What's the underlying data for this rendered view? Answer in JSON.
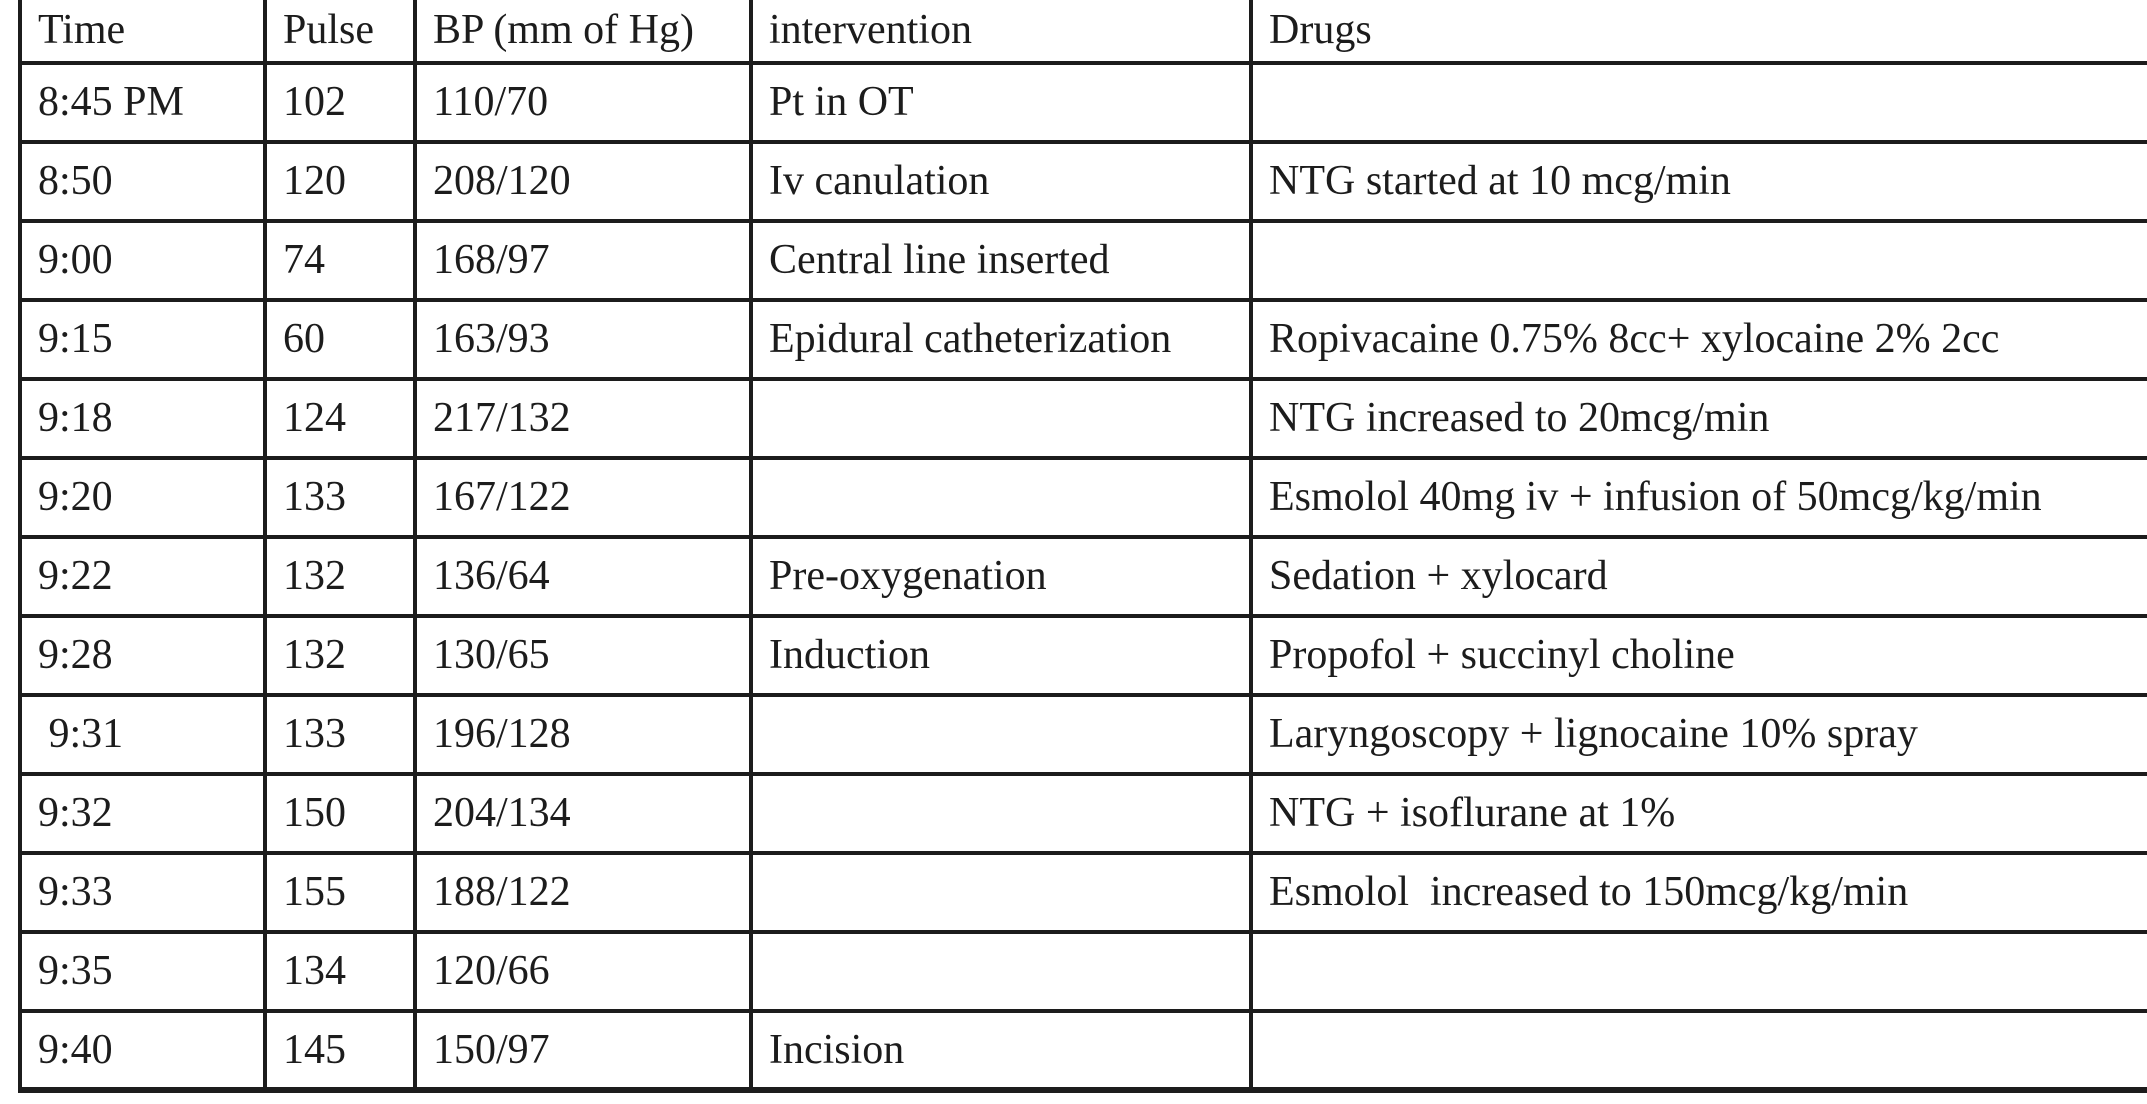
{
  "table": {
    "title": "anaesthesia-vitals-record",
    "columns": [
      "Time",
      "Pulse",
      "BP (mm of Hg)",
      "intervention",
      "Drugs"
    ],
    "rows": [
      [
        "8:45 PM",
        "102",
        "110/70",
        "Pt in OT",
        ""
      ],
      [
        "8:50",
        "120",
        "208/120",
        "Iv canulation",
        "NTG started at 10 mcg/min"
      ],
      [
        "9:00",
        "74",
        "168/97",
        "Central line inserted",
        ""
      ],
      [
        "9:15",
        "60",
        "163/93",
        "Epidural catheterization",
        "Ropivacaine 0.75% 8cc+ xylocaine 2% 2cc"
      ],
      [
        "9:18",
        "124",
        "217/132",
        "",
        "NTG increased to 20mcg/min"
      ],
      [
        "9:20",
        "133",
        "167/122",
        "",
        "Esmolol 40mg iv + infusion of 50mcg/kg/min"
      ],
      [
        "9:22",
        "132",
        "136/64",
        "Pre-oxygenation",
        "Sedation + xylocard"
      ],
      [
        "9:28",
        "132",
        "130/65",
        "Induction",
        "Propofol + succinyl choline"
      ],
      [
        " 9:31",
        "133",
        "196/128",
        "",
        "Laryngoscopy + lignocaine 10% spray"
      ],
      [
        "9:32",
        "150",
        "204/134",
        "",
        "NTG + isoflurane at 1%"
      ],
      [
        "9:33",
        "155",
        "188/122",
        "",
        "Esmolol  increased to 150mcg/kg/min"
      ],
      [
        "9:35",
        "134",
        "120/66",
        "",
        ""
      ],
      [
        "9:40",
        "145",
        "150/97",
        "Incision",
        ""
      ]
    ],
    "colors": {
      "border": "#1c1c1c",
      "text": "#1c1c1c",
      "background": "#ffffff"
    }
  }
}
